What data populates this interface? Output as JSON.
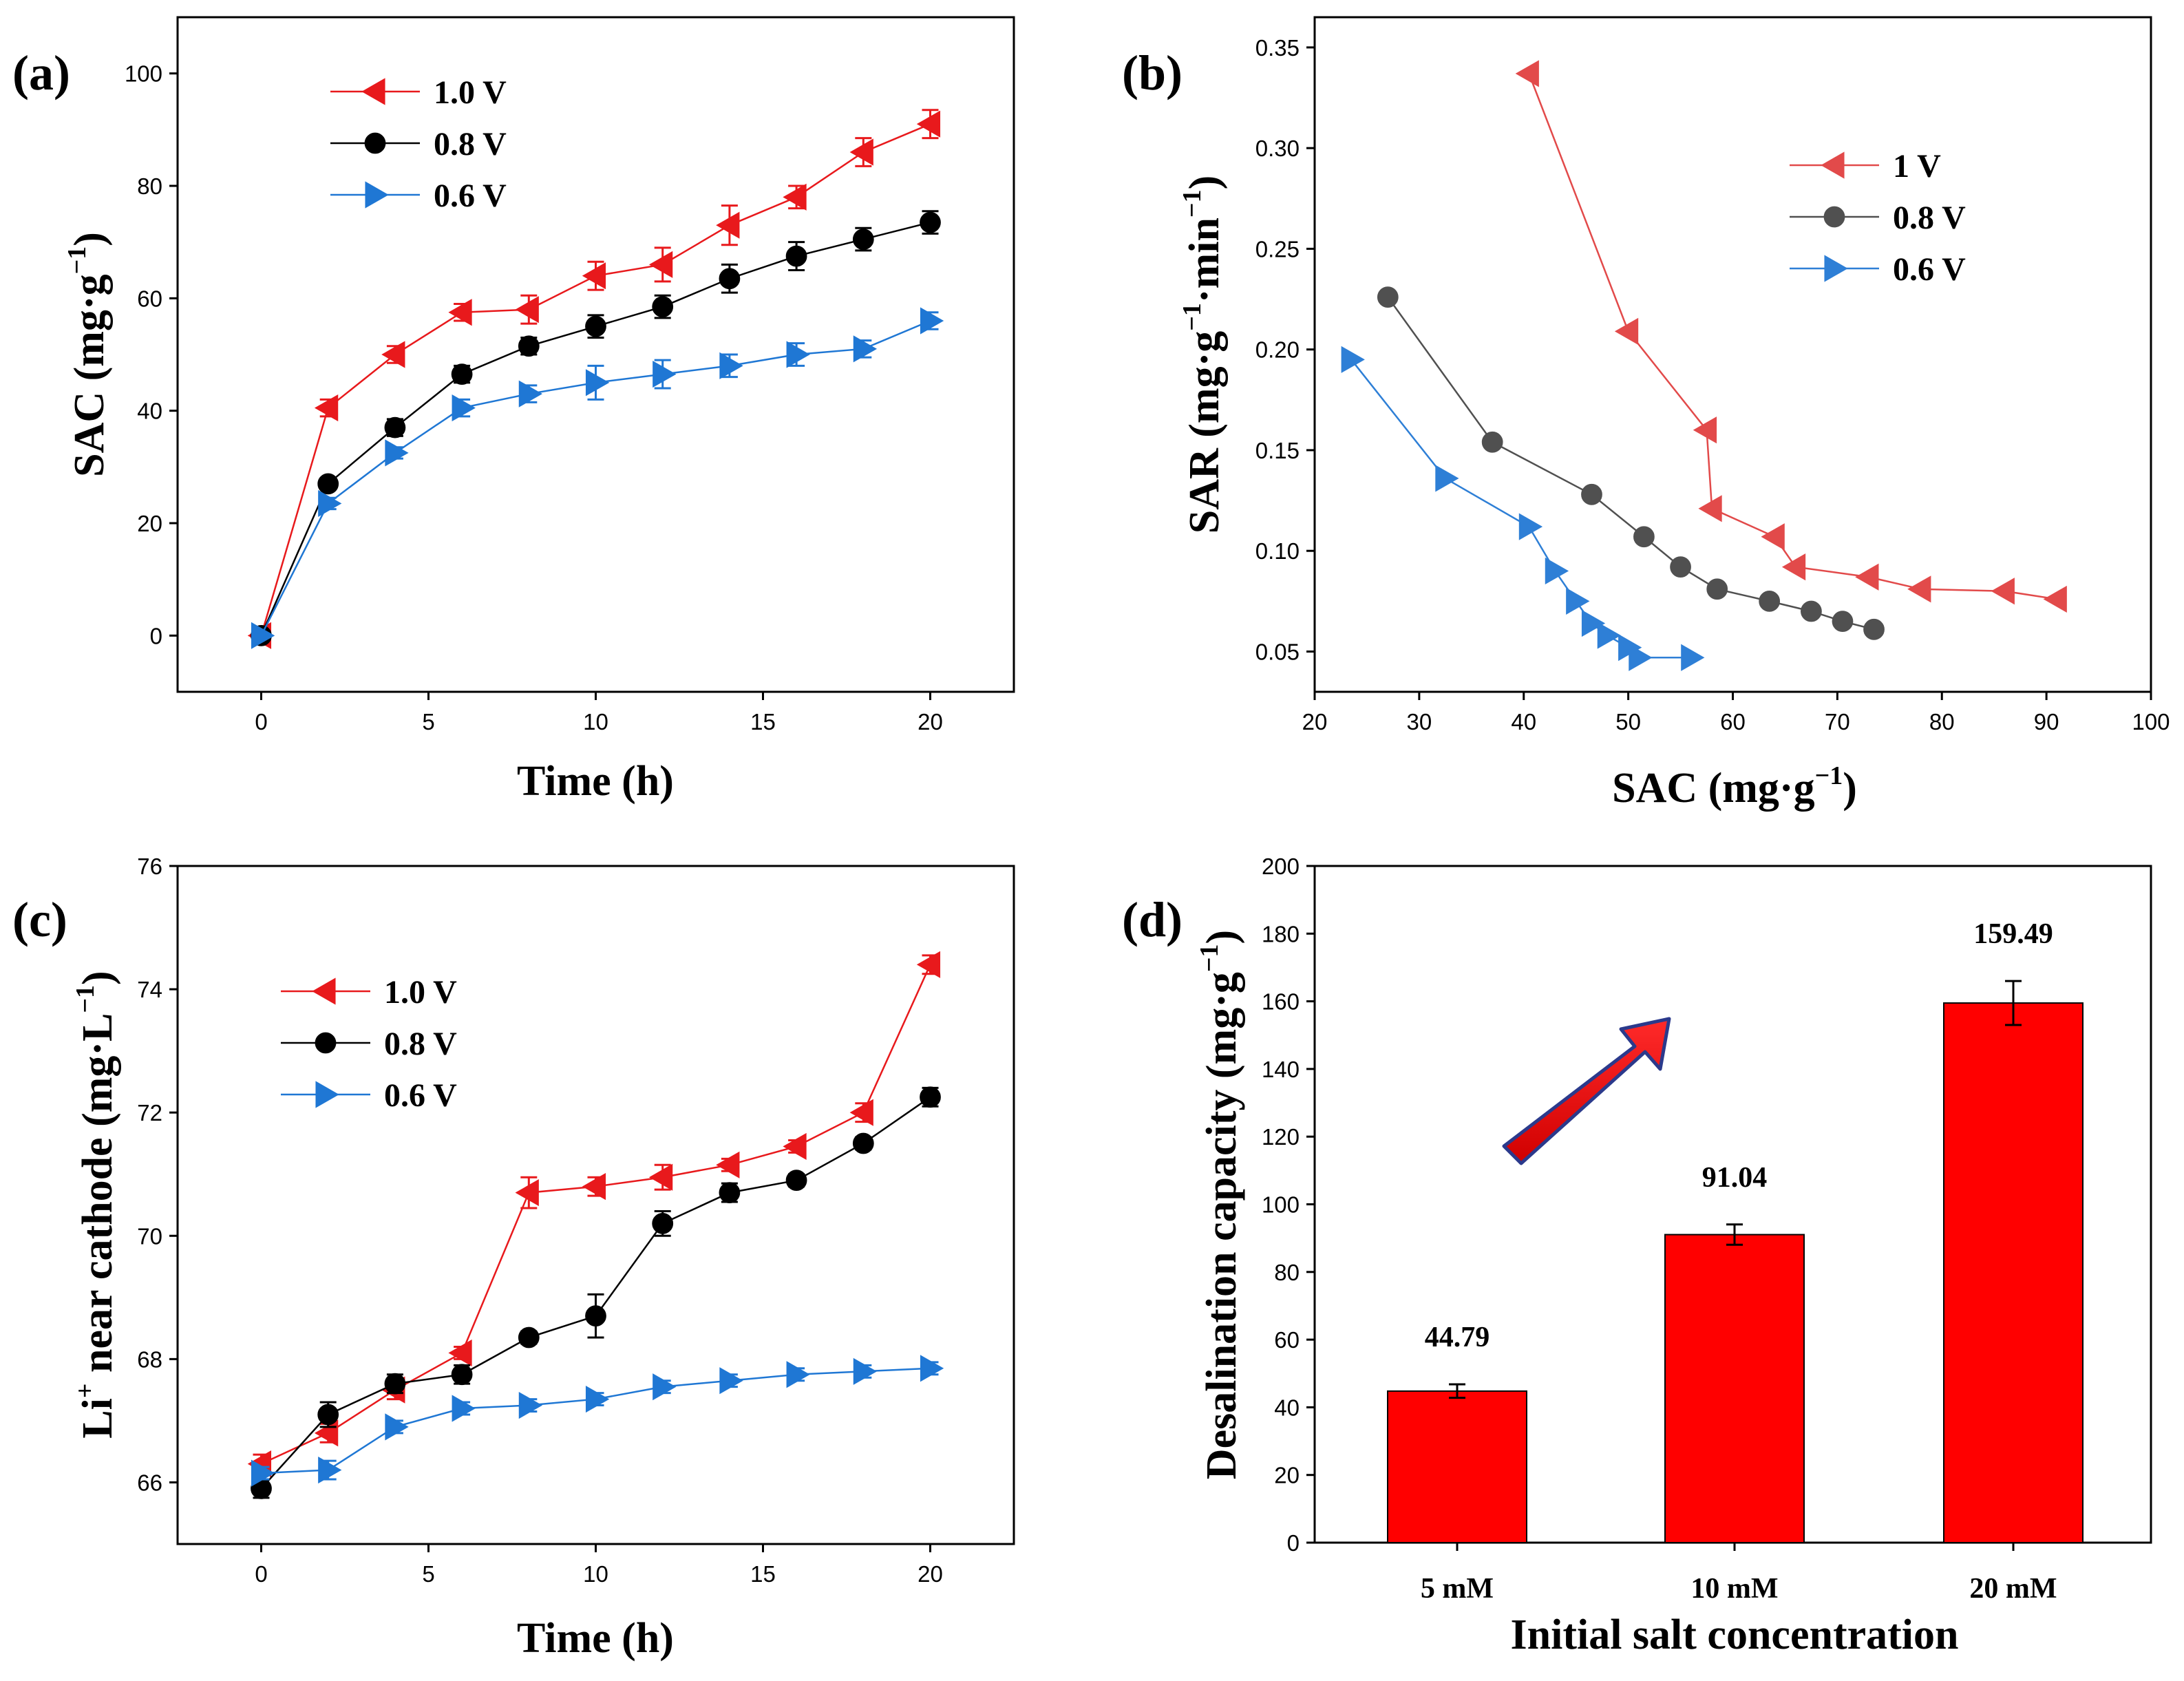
{
  "colors": {
    "red": "#e8191c",
    "black": "#000000",
    "blue": "#1f77d4",
    "gray_b": "#505050",
    "red_b": "#e24a4a",
    "blue_b": "#2e7fd6",
    "bar": "#ff0000",
    "arrow_outline": "#2b3a8c"
  },
  "chart_data": [
    {
      "panel": "(a)",
      "type": "line",
      "xlabel": "Time (h)",
      "ylabel": "SAC (mg·g",
      "ylabel_sup": "−1",
      "ylabel_tail": ")",
      "xlim": [
        -2.5,
        22.5
      ],
      "ylim": [
        -10,
        110
      ],
      "xticks": [
        0,
        5,
        10,
        15,
        20
      ],
      "yticks": [
        0,
        20,
        40,
        60,
        80,
        100
      ],
      "x": [
        0,
        2,
        4,
        6,
        8,
        10,
        12,
        14,
        16,
        18,
        20
      ],
      "series": [
        {
          "name": "1.0 V",
          "color": "#e8191c",
          "marker": "tri-left",
          "values": [
            0,
            40.5,
            50,
            57.5,
            58,
            64,
            66,
            73,
            78,
            86,
            91
          ],
          "errors": [
            0,
            1.5,
            1.5,
            1.5,
            2.5,
            2.5,
            3,
            3.5,
            2,
            2.5,
            2.5
          ]
        },
        {
          "name": "0.8 V",
          "color": "#000000",
          "marker": "circle",
          "values": [
            0,
            27,
            37,
            46.5,
            51.5,
            55,
            58.5,
            63.5,
            67.5,
            70.5,
            73.5
          ],
          "errors": [
            0,
            1,
            1.5,
            1.5,
            1.5,
            2,
            2,
            2.5,
            2.5,
            2,
            2
          ]
        },
        {
          "name": "0.6 V",
          "color": "#1f77d4",
          "marker": "tri-right",
          "values": [
            0,
            23.5,
            32.5,
            40.5,
            43,
            45,
            46.5,
            48,
            50,
            51,
            56
          ],
          "errors": [
            0,
            1,
            1,
            1.5,
            1.5,
            3,
            2.5,
            2,
            2,
            1.5,
            1.5
          ]
        }
      ]
    },
    {
      "panel": "(b)",
      "type": "line",
      "xlabel": "SAC (mg·g",
      "xlabel_sup": "−1",
      "xlabel_tail": ")",
      "ylabel": "SAR (mg·g",
      "ylabel_sup": "−1",
      "ylabel_mid": "·min",
      "ylabel_sup2": "−1",
      "ylabel_tail": ")",
      "xlim": [
        20,
        100
      ],
      "ylim": [
        0.03,
        0.365
      ],
      "xticks": [
        20,
        30,
        40,
        50,
        60,
        70,
        80,
        90,
        100
      ],
      "yticks": [
        0.05,
        0.1,
        0.15,
        0.2,
        0.25,
        0.3,
        0.35
      ],
      "ytick_labels": [
        "0.05",
        "0.10",
        "0.15",
        "0.20",
        "0.25",
        "0.30",
        "0.35"
      ],
      "series": [
        {
          "name": "1 V",
          "color": "#e24a4a",
          "marker": "tri-left",
          "x": [
            40.5,
            50,
            57.5,
            58,
            64,
            66,
            73,
            78,
            86,
            91
          ],
          "y": [
            0.337,
            0.209,
            0.16,
            0.121,
            0.107,
            0.092,
            0.087,
            0.081,
            0.08,
            0.076
          ]
        },
        {
          "name": "0.8 V",
          "color": "#505050",
          "marker": "circle",
          "x": [
            27,
            37,
            46.5,
            51.5,
            55,
            58.5,
            63.5,
            67.5,
            70.5,
            73.5
          ],
          "y": [
            0.226,
            0.154,
            0.128,
            0.107,
            0.092,
            0.081,
            0.075,
            0.07,
            0.065,
            0.061
          ]
        },
        {
          "name": "0.6 V",
          "color": "#2e7fd6",
          "marker": "tri-right",
          "x": [
            23.5,
            32.5,
            40.5,
            43,
            45,
            46.5,
            48,
            50,
            51,
            56
          ],
          "y": [
            0.195,
            0.136,
            0.112,
            0.09,
            0.075,
            0.064,
            0.058,
            0.052,
            0.047,
            0.047
          ]
        }
      ]
    },
    {
      "panel": "(c)",
      "type": "line",
      "xlabel": "Time (h)",
      "ylabel_pre": "Li",
      "ylabel_sup": "+",
      "ylabel": " near cathode (mg·L",
      "ylabel_sup2": "−1",
      "ylabel_tail": ")",
      "xlim": [
        -2.5,
        22.5
      ],
      "ylim": [
        65,
        76
      ],
      "xticks": [
        0,
        5,
        10,
        15,
        20
      ],
      "yticks": [
        66,
        68,
        70,
        72,
        74,
        76
      ],
      "x": [
        0,
        2,
        4,
        6,
        8,
        10,
        12,
        14,
        16,
        18,
        20
      ],
      "series": [
        {
          "name": "1.0 V",
          "color": "#e8191c",
          "marker": "tri-left",
          "values": [
            66.3,
            66.8,
            67.5,
            68.1,
            70.7,
            70.8,
            70.95,
            71.15,
            71.45,
            72.0,
            74.4
          ],
          "errors": [
            0.15,
            0.15,
            0.15,
            0.1,
            0.25,
            0.15,
            0.2,
            0.1,
            0.1,
            0.15,
            0.15
          ]
        },
        {
          "name": "0.8 V",
          "color": "#000000",
          "marker": "circle",
          "values": [
            65.9,
            67.1,
            67.6,
            67.75,
            68.35,
            68.7,
            70.2,
            70.7,
            70.9,
            71.5,
            72.25
          ],
          "errors": [
            0.15,
            0.2,
            0.15,
            0.15,
            0.1,
            0.35,
            0.2,
            0.15,
            0.1,
            0.1,
            0.15
          ]
        },
        {
          "name": "0.6 V",
          "color": "#1f77d4",
          "marker": "tri-right",
          "values": [
            66.15,
            66.2,
            66.9,
            67.2,
            67.25,
            67.35,
            67.55,
            67.65,
            67.75,
            67.8,
            67.85
          ],
          "errors": [
            0.1,
            0.15,
            0.1,
            0.1,
            0.1,
            0.1,
            0.1,
            0.1,
            0.1,
            0.1,
            0.1
          ]
        }
      ]
    },
    {
      "panel": "(d)",
      "type": "bar",
      "xlabel": "Initial salt concentration",
      "ylabel": "Desalination capacity (mg·g",
      "ylabel_sup": "−1",
      "ylabel_tail": ")",
      "ylim": [
        0,
        200
      ],
      "yticks": [
        0,
        20,
        40,
        60,
        80,
        100,
        120,
        140,
        160,
        180,
        200
      ],
      "categories": [
        "5 mM",
        "10 mM",
        "20 mM"
      ],
      "values": [
        44.79,
        91.04,
        159.49
      ],
      "value_labels": [
        "44.79",
        "91.04",
        "159.49"
      ],
      "errors": [
        2,
        3,
        6.5
      ],
      "color": "#ff0000"
    }
  ]
}
